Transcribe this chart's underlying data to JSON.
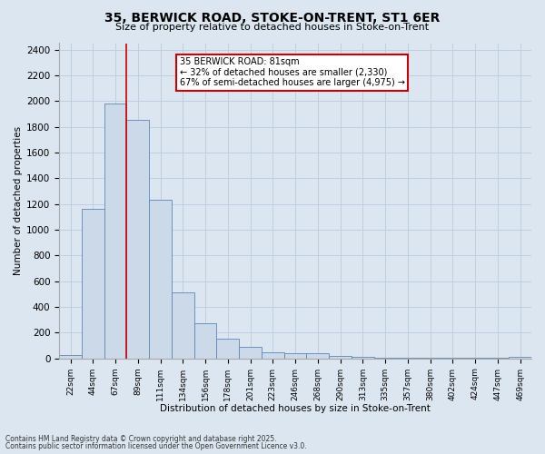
{
  "title1": "35, BERWICK ROAD, STOKE-ON-TRENT, ST1 6ER",
  "title2": "Size of property relative to detached houses in Stoke-on-Trent",
  "xlabel": "Distribution of detached houses by size in Stoke-on-Trent",
  "ylabel": "Number of detached properties",
  "bar_labels": [
    "22sqm",
    "44sqm",
    "67sqm",
    "89sqm",
    "111sqm",
    "134sqm",
    "156sqm",
    "178sqm",
    "201sqm",
    "223sqm",
    "246sqm",
    "268sqm",
    "290sqm",
    "313sqm",
    "335sqm",
    "357sqm",
    "380sqm",
    "402sqm",
    "424sqm",
    "447sqm",
    "469sqm"
  ],
  "bar_values": [
    25,
    1160,
    1980,
    1855,
    1230,
    515,
    275,
    150,
    90,
    50,
    40,
    37,
    18,
    15,
    8,
    5,
    3,
    2,
    2,
    2,
    15
  ],
  "bar_color": "#ccd9e8",
  "bar_edge_color": "#5a87b8",
  "annotation_text": "35 BERWICK ROAD: 81sqm\n← 32% of detached houses are smaller (2,330)\n67% of semi-detached houses are larger (4,975) →",
  "vline_x_index": 2.5,
  "vline_color": "#cc0000",
  "annotation_box_color": "#ffffff",
  "annotation_box_edge": "#cc0000",
  "ylim": [
    0,
    2450
  ],
  "yticks": [
    0,
    200,
    400,
    600,
    800,
    1000,
    1200,
    1400,
    1600,
    1800,
    2000,
    2200,
    2400
  ],
  "grid_color": "#c0cfe0",
  "bg_color": "#dce6f0",
  "fig_bg_color": "#dce6f0",
  "footer1": "Contains HM Land Registry data © Crown copyright and database right 2025.",
  "footer2": "Contains public sector information licensed under the Open Government Licence v3.0."
}
